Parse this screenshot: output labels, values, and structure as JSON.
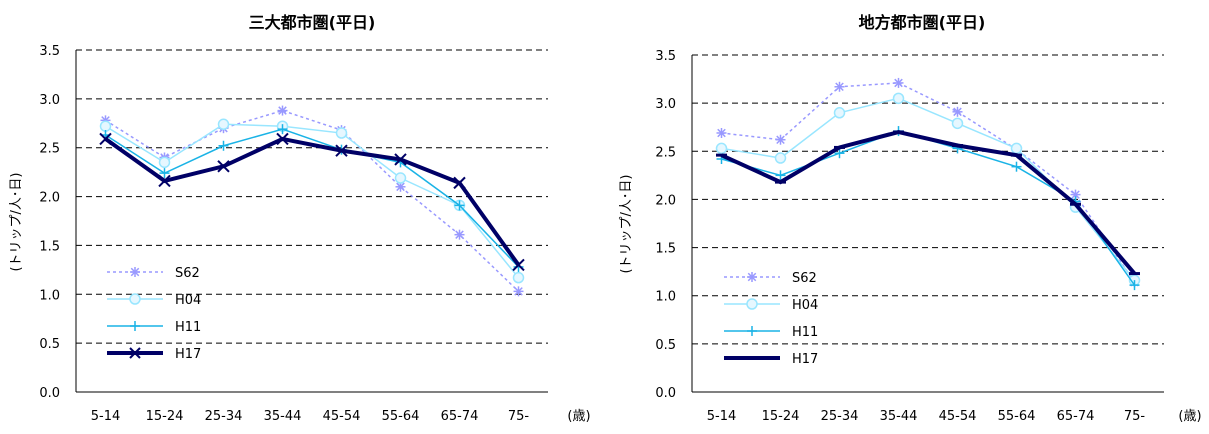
{
  "chart_data": [
    {
      "type": "line",
      "title": "三大都市圏(平日)",
      "ylabel": "(トリップ/人･日)",
      "xunit": "(歳)",
      "ylim": [
        0,
        3.5
      ],
      "yticks": [
        "0.0",
        "0.5",
        "1.0",
        "1.5",
        "2.0",
        "2.5",
        "3.0",
        "3.5"
      ],
      "grid": "horizontal dashed",
      "legend_position": "bottom-left",
      "categories": [
        "5-14",
        "15-24",
        "25-34",
        "35-44",
        "45-54",
        "55-64",
        "65-74",
        "75-"
      ],
      "series": [
        {
          "name": "S62",
          "values": [
            2.78,
            2.4,
            2.7,
            2.88,
            2.68,
            2.1,
            1.61,
            1.03
          ],
          "color": "#9999ff",
          "style": "dotted",
          "marker": "asterisk"
        },
        {
          "name": "H04",
          "values": [
            2.72,
            2.35,
            2.74,
            2.72,
            2.65,
            2.19,
            1.91,
            1.17
          ],
          "color": "#99e6ff",
          "style": "solid",
          "marker": "circle"
        },
        {
          "name": "H11",
          "values": [
            2.63,
            2.24,
            2.52,
            2.69,
            2.48,
            2.35,
            1.91,
            1.28
          ],
          "color": "#1ab3e6",
          "style": "solid",
          "marker": "plus"
        },
        {
          "name": "H17",
          "values": [
            2.59,
            2.16,
            2.31,
            2.59,
            2.47,
            2.38,
            2.14,
            1.3
          ],
          "color": "#000066",
          "style": "thick",
          "marker": "x"
        }
      ]
    },
    {
      "type": "line",
      "title": "地方都市圏(平日)",
      "ylabel": "(トリップ/人･日)",
      "xunit": "(歳)",
      "ylim": [
        0,
        3.5
      ],
      "yticks": [
        "0.0",
        "0.5",
        "1.0",
        "1.5",
        "2.0",
        "2.5",
        "3.0",
        "3.5"
      ],
      "grid": "horizontal dashed",
      "legend_position": "bottom-left",
      "categories": [
        "5-14",
        "15-24",
        "25-34",
        "35-44",
        "45-54",
        "55-64",
        "65-74",
        "75-"
      ],
      "series": [
        {
          "name": "S62",
          "values": [
            2.69,
            2.62,
            3.17,
            3.21,
            2.91,
            2.52,
            2.05,
            1.14
          ],
          "color": "#9999ff",
          "style": "dotted",
          "marker": "asterisk"
        },
        {
          "name": "H04",
          "values": [
            2.53,
            2.43,
            2.9,
            3.05,
            2.79,
            2.53,
            1.92,
            1.16
          ],
          "color": "#99e6ff",
          "style": "solid",
          "marker": "circle"
        },
        {
          "name": "H11",
          "values": [
            2.42,
            2.25,
            2.48,
            2.71,
            2.53,
            2.34,
            1.98,
            1.11
          ],
          "color": "#1ab3e6",
          "style": "solid",
          "marker": "plus"
        },
        {
          "name": "H17",
          "values": [
            2.46,
            2.18,
            2.54,
            2.7,
            2.56,
            2.46,
            1.95,
            1.23
          ],
          "color": "#000066",
          "style": "thick",
          "marker": "dash"
        }
      ]
    }
  ]
}
